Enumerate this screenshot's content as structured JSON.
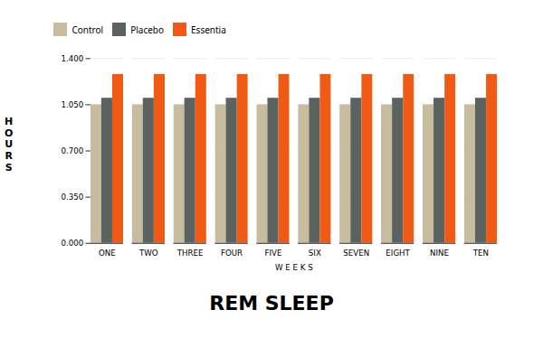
{
  "chart_data": {
    "type": "bar",
    "title": "REM SLEEP",
    "xlabel": "W E E K S",
    "ylabel": "H\nO\nU\nR\nS",
    "categories": [
      "ONE",
      "TWO",
      "THREE",
      "FOUR",
      "FIVE",
      "SIX",
      "SEVEN",
      "EIGHT",
      "NINE",
      "TEN"
    ],
    "series": [
      {
        "name": "Control",
        "color": "#c8bc9e",
        "values": [
          1.05,
          1.05,
          1.05,
          1.05,
          1.05,
          1.05,
          1.05,
          1.05,
          1.05,
          1.05
        ]
      },
      {
        "name": "Placebo",
        "color": "#5a6360",
        "values": [
          1.1,
          1.1,
          1.1,
          1.1,
          1.1,
          1.1,
          1.1,
          1.1,
          1.1,
          1.1
        ]
      },
      {
        "name": "Essentia",
        "color": "#f05a14",
        "values": [
          1.28,
          1.28,
          1.28,
          1.28,
          1.28,
          1.28,
          1.28,
          1.28,
          1.28,
          1.28
        ]
      }
    ],
    "ylim": [
      0.0,
      1.4
    ],
    "yticks": [
      {
        "value": 0.0,
        "label": "0.000"
      },
      {
        "value": 0.35,
        "label": "0.350"
      },
      {
        "value": 0.7,
        "label": "0.700"
      },
      {
        "value": 1.05,
        "label": "1.050"
      },
      {
        "value": 1.4,
        "label": "1.400"
      }
    ],
    "grid": true,
    "legend": "top"
  }
}
